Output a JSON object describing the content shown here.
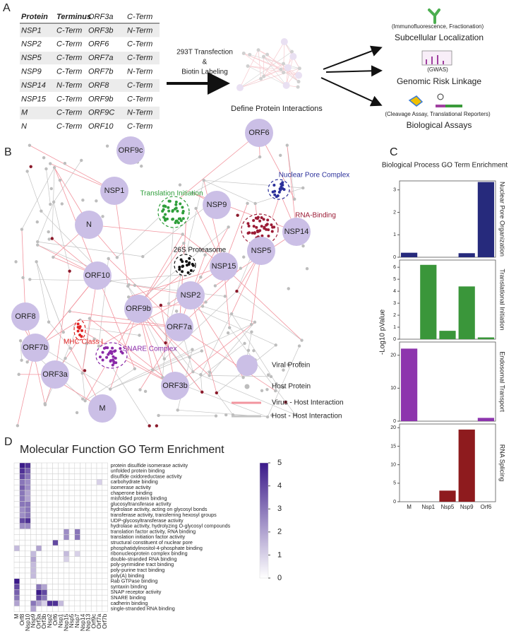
{
  "panel_labels": [
    "A",
    "B",
    "C",
    "D"
  ],
  "table": {
    "header": [
      "Protein",
      "Terminus",
      "ORF3a",
      "C-Term"
    ],
    "rows": [
      [
        "NSP1",
        "C-Term",
        "ORF3b",
        "N-Term"
      ],
      [
        "NSP2",
        "C-Term",
        "ORF6",
        "C-Term"
      ],
      [
        "NSP5",
        "C-Term",
        "ORF7a",
        "C-Term"
      ],
      [
        "NSP9",
        "C-Term",
        "ORF7b",
        "N-Term"
      ],
      [
        "NSP14",
        "N-Term",
        "ORF8",
        "C-Term"
      ],
      [
        "NSP15",
        "C-Term",
        "ORF9b",
        "C-Term"
      ],
      [
        "M",
        "C-Term",
        "ORF9C",
        "N-Term"
      ],
      [
        "N",
        "C-Term",
        "ORF10",
        "C-Term"
      ]
    ]
  },
  "workflow": {
    "step_lines": [
      "293T Transfection",
      "&",
      "Biotin Labeling"
    ],
    "result": "Define Protein Interactions",
    "outputs": [
      {
        "note": "(Immunofluorescence, Fractionation)",
        "title": "Subcellular Localization"
      },
      {
        "note": "(GWAS)",
        "title": "Genomic Risk Linkage"
      },
      {
        "note": "(Cleavage Assay, Translational Reporters)",
        "title": "Biological Assays"
      }
    ]
  },
  "network": {
    "viral_nodes": [
      "ORF9c",
      "ORF6",
      "NSP1",
      "NSP9",
      "NSP14",
      "N",
      "NSP5",
      "NSP15",
      "ORF10",
      "NSP2",
      "ORF9b",
      "ORF7a",
      "ORF8",
      "ORF7b",
      "ORF3a",
      "ORF3b",
      "M"
    ],
    "clusters": [
      {
        "label": "Translation Initiation",
        "color": "#2e9e3a"
      },
      {
        "label": "Nuclear Pore Complex",
        "color": "#2a2f9a"
      },
      {
        "label": "RNA-Binding",
        "color": "#9b1b35"
      },
      {
        "label": "26S Proteasome",
        "color": "#111111"
      },
      {
        "label": "MHC Class I",
        "color": "#e02424"
      },
      {
        "label": "SNARE Complex",
        "color": "#8a2aa8"
      }
    ],
    "legend": [
      "Viral Protein",
      "Host Protein",
      "Virus - Host Interaction",
      "Host - Host Interaction"
    ]
  },
  "chart_data": [
    {
      "type": "bar",
      "title": "Biological Process GO Term Enrichment",
      "ylabel": "-Log10 pValue",
      "categories": [
        "M",
        "Nsp1",
        "Nsp5",
        "Nsp9",
        "Orf6"
      ],
      "panels": [
        {
          "name": "Nuclear Pore Organization",
          "color": "#262a7c",
          "values": [
            0.2,
            0,
            0,
            0.18,
            3.35
          ],
          "ylim": [
            0,
            3.4
          ],
          "yticks": [
            0,
            1,
            2,
            3
          ]
        },
        {
          "name": "Translational Initiation",
          "color": "#3a963a",
          "values": [
            0,
            6.2,
            0.7,
            4.4,
            0.15
          ],
          "ylim": [
            0,
            6.6
          ],
          "yticks": [
            0,
            1,
            2,
            3,
            4,
            5,
            6
          ]
        },
        {
          "name": "Endosomal Transport",
          "color": "#8d35ad",
          "values": [
            22,
            0,
            0,
            0,
            1
          ],
          "ylim": [
            0,
            24
          ],
          "yticks": [
            0,
            10,
            20
          ]
        },
        {
          "name": "RNA Splicing",
          "color": "#8e1b1e",
          "values": [
            0,
            0,
            3,
            19.5,
            0
          ],
          "ylim": [
            0,
            21
          ],
          "yticks": [
            0,
            5,
            10,
            15,
            20
          ]
        }
      ]
    },
    {
      "type": "heatmap",
      "title": "Molecular Function GO Term Enrichment",
      "rows": [
        "protein disulfide isomerase activity",
        "unfolded protein binding",
        "disulfide oxidoreductase activity",
        "carbohydrate binding",
        "isomerase activity",
        "chaperone binding",
        "misfolded protein binding",
        "glucosyltransferase activity",
        "hydrolase activity, acting on glycosyl bonds",
        "transferase activity, transferring hexosyl groups",
        "UDP-glycosyltransferase activity",
        "hydrolase activity, hydrolyzing O-glycosyl compounds",
        "translation factor activity, RNA binding",
        "translation initiation factor activity",
        "structural constituent of nuclear pore",
        "phosphatidylinositol-4-phosphate binding",
        "ribonucleoprotein complex binding",
        "double-stranded RNA binding",
        "poly-pyrimidine tract binding",
        "poly-purine tract binding",
        "poly(A) binding",
        "Rab GTPase binding",
        "syntaxin binding",
        "SNAP receptor activity",
        "SNARE binding",
        "cadherin binding",
        "single-stranded RNA binding"
      ],
      "columns": [
        "M",
        "Orf8",
        "Nsp10",
        "Nsp9",
        "Orf3a",
        "Orf3b",
        "Nsp2",
        "Orf6",
        "Nsp1",
        "Nsp15",
        "Nsp5",
        "Nsp7",
        "Nsp14",
        "Nsp13",
        "Orf9c",
        "Orf7a",
        "Orf7b"
      ],
      "values": [
        [
          0,
          5,
          4.5,
          0,
          0,
          0,
          0,
          0,
          0,
          0,
          0,
          0,
          0,
          0,
          0,
          0,
          0
        ],
        [
          0,
          4.5,
          3.5,
          0,
          0,
          0,
          0,
          0,
          0,
          0,
          0,
          0,
          0,
          0,
          0,
          0,
          0
        ],
        [
          0,
          4,
          3,
          0,
          0,
          0,
          0,
          0,
          0,
          0,
          0,
          0,
          0,
          0,
          0,
          0,
          0
        ],
        [
          0,
          3,
          2.5,
          0,
          0,
          0,
          0,
          0,
          0,
          0,
          0,
          0,
          0,
          0,
          0,
          1,
          0
        ],
        [
          0,
          3.5,
          2.5,
          0,
          0,
          0,
          0,
          0,
          0,
          0,
          0,
          0,
          0,
          0,
          0,
          0,
          0
        ],
        [
          0,
          3,
          2,
          0,
          0,
          0,
          0,
          0,
          0,
          0,
          0,
          0,
          0,
          0,
          0,
          0,
          0
        ],
        [
          0,
          3,
          2,
          0,
          0,
          0,
          0,
          0,
          0,
          0,
          0,
          0,
          0,
          0,
          0,
          0,
          0
        ],
        [
          0,
          3,
          3,
          0,
          0,
          0,
          0,
          0,
          0,
          0,
          0,
          0,
          0,
          0,
          0,
          0,
          0
        ],
        [
          0,
          2.5,
          3,
          0,
          0,
          0,
          0,
          0,
          0,
          0,
          0,
          0,
          0,
          0,
          0,
          0,
          0
        ],
        [
          0,
          2.5,
          3,
          0,
          0,
          0,
          0,
          0,
          0,
          0,
          0,
          0,
          0,
          0,
          0,
          0,
          0
        ],
        [
          0,
          4,
          4.5,
          0,
          0,
          0,
          0,
          0,
          0,
          0,
          0,
          0,
          0,
          0,
          0,
          0,
          0
        ],
        [
          0,
          2.5,
          2.5,
          0,
          0,
          0,
          0,
          0,
          0,
          0,
          0,
          0,
          0,
          0,
          0,
          0,
          0
        ],
        [
          0,
          0,
          0,
          0,
          0,
          0,
          0,
          0,
          0,
          2.5,
          0,
          3,
          0,
          0,
          0,
          0,
          0
        ],
        [
          0,
          0,
          0,
          0,
          0,
          0,
          0,
          0,
          0,
          2.5,
          0,
          3,
          0,
          0,
          0,
          0,
          0
        ],
        [
          0,
          0,
          0,
          0,
          0,
          0,
          0,
          4,
          0,
          0,
          0,
          0,
          0,
          0,
          0,
          0,
          0
        ],
        [
          1.5,
          0,
          0,
          0,
          2,
          0,
          0,
          0,
          0,
          0,
          0,
          0,
          0,
          0,
          0,
          0,
          0
        ],
        [
          0,
          0,
          0,
          1.5,
          0,
          0,
          0,
          0,
          0,
          1.5,
          0,
          1,
          0,
          0,
          0,
          0,
          0
        ],
        [
          0,
          0,
          0,
          2,
          0,
          0,
          0,
          0,
          0,
          1,
          0,
          0,
          0,
          0,
          0,
          0,
          0
        ],
        [
          0,
          0,
          0,
          1.5,
          0,
          0,
          0,
          0,
          0,
          0,
          0,
          0,
          0,
          0,
          0,
          0,
          0
        ],
        [
          0,
          0,
          0,
          1.5,
          0,
          0,
          0,
          0,
          0,
          0,
          0,
          0,
          0,
          0,
          0,
          0,
          0
        ],
        [
          0,
          0,
          0,
          1.5,
          0,
          0,
          0,
          0,
          0,
          0,
          0,
          0,
          0,
          0,
          0,
          0,
          0
        ],
        [
          5,
          0,
          0,
          0,
          0,
          0,
          0,
          0,
          0,
          0,
          0,
          0,
          0,
          0,
          0,
          0,
          0
        ],
        [
          4,
          0,
          0,
          0,
          3,
          2,
          0,
          0,
          0,
          0,
          0,
          0,
          0,
          0,
          0,
          0,
          0
        ],
        [
          3.5,
          0,
          0,
          0,
          5,
          4,
          0,
          0,
          0,
          0,
          0,
          0,
          0,
          0,
          0,
          0,
          0
        ],
        [
          3,
          0,
          0,
          0,
          4,
          3,
          0,
          0,
          0,
          0,
          0,
          0,
          0,
          0,
          0,
          0,
          0
        ],
        [
          2,
          0,
          0,
          3,
          2,
          1,
          4.5,
          4.5,
          1.5,
          0,
          0,
          0,
          0,
          0,
          0,
          0,
          0
        ],
        [
          0,
          0,
          0,
          2,
          0,
          0,
          0,
          0,
          0,
          0,
          0,
          0,
          0,
          0,
          0,
          0,
          0
        ]
      ],
      "colors": [
        "#ffffff",
        "#3b1a8a"
      ],
      "clim": [
        0,
        5
      ],
      "cticks": [
        0,
        1,
        2,
        3,
        4,
        5
      ]
    }
  ]
}
